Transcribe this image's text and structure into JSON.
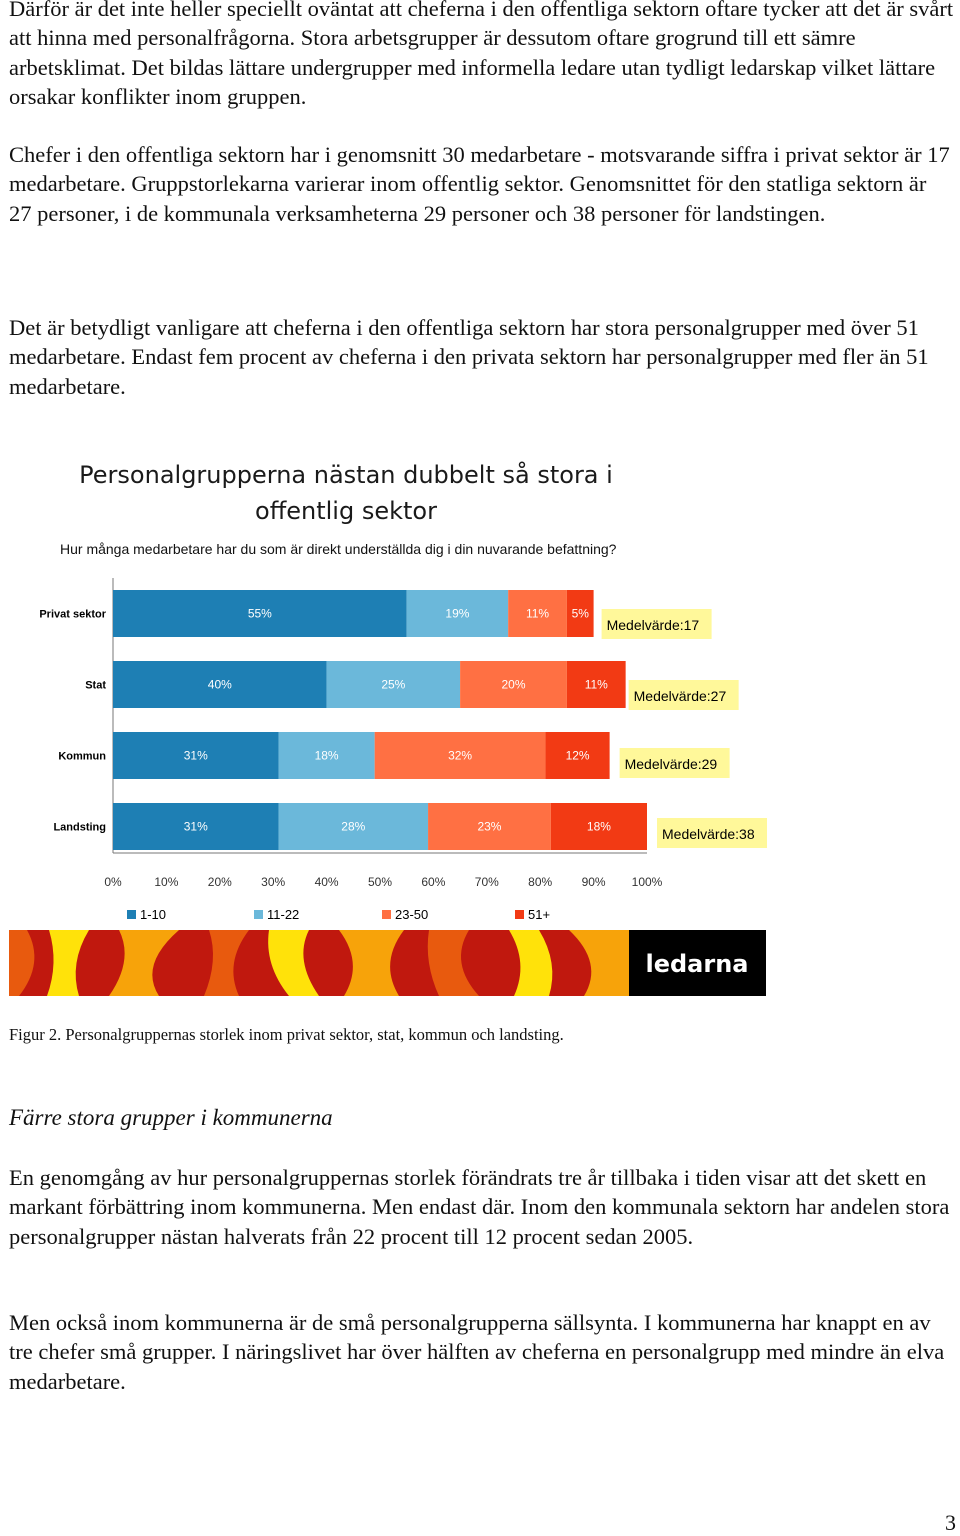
{
  "paragraphs": {
    "p1": "Därför är det inte heller speciellt oväntat att cheferna i den offentliga sektorn oftare tycker att det är svårt att hinna med personalfrågorna. Stora arbetsgrupper är dessutom oftare grogrund till ett sämre arbetsklimat. Det bildas lättare undergrupper med informella ledare utan tydligt ledarskap vilket lättare orsakar konflikter inom gruppen.",
    "p2": "Chefer i den offentliga sektorn har i genomsnitt 30 medarbetare - motsvarande siffra i privat sektor är 17 medarbetare. Gruppstorlekarna varierar inom offentlig sektor. Genomsnittet för den statliga sektorn är 27 personer, i de kommunala verksamheterna 29 personer och 38 personer för landstingen.",
    "p3": "Det är betydligt vanligare att cheferna i den offentliga sektorn har stora personalgrupper med över 51 medarbetare. Endast fem procent av cheferna i den privata sektorn har personalgrupper med fler än 51 medarbetare.",
    "p4": "En genomgång av hur personalgruppernas storlek förändrats tre år tillbaka i tiden visar att det skett en markant förbättring inom kommunerna. Men endast där. Inom den kommunala sektorn har andelen stora personalgrupper nästan halverats från 22 procent till 12 procent sedan 2005.",
    "p5": "Men också inom kommunerna är de små personalgrupperna sällsynta. I kommunerna har knappt en av tre chefer små grupper. I näringslivet har över hälften av cheferna en personalgrupp med mindre än elva medarbetare."
  },
  "subheading": "Färre stora grupper i kommunerna",
  "caption": "Figur 2. Personalgruppernas storlek inom privat sektor, stat, kommun och landsting.",
  "page_number": "3",
  "logo_text": "ledarna",
  "colors": {
    "s1": "#1E7FB4",
    "s2": "#6BB8DA",
    "s3": "#FF7043",
    "s4": "#F23A14",
    "mean_box": "#FFF89A",
    "logo_bg": "#000000",
    "band": [
      "#C0180E",
      "#E85A0E",
      "#F7A30A",
      "#FFE20A",
      "#D83A0C"
    ]
  },
  "chart_data": {
    "type": "bar",
    "orientation": "horizontal",
    "stacked": true,
    "title": "Personalgrupperna nästan dubbelt så stora i offentlig sektor",
    "subtitle": "Hur många medarbetare har du som är direkt underställda dig i din nuvarande befattning?",
    "categories": [
      "Privat sektor",
      "Stat",
      "Kommun",
      "Landsting"
    ],
    "series": [
      {
        "name": "1-10",
        "values": [
          55,
          40,
          31,
          31
        ]
      },
      {
        "name": "11-22",
        "values": [
          19,
          25,
          18,
          28
        ]
      },
      {
        "name": "23-50",
        "values": [
          11,
          20,
          32,
          23
        ]
      },
      {
        "name": "51+",
        "values": [
          5,
          11,
          12,
          18
        ]
      }
    ],
    "annotations": [
      "Medelvärde:17",
      "Medelvärde:27",
      "Medelvärde:29",
      "Medelvärde:38"
    ],
    "xticks": [
      "0%",
      "10%",
      "20%",
      "30%",
      "40%",
      "50%",
      "60%",
      "70%",
      "80%",
      "90%",
      "100%"
    ],
    "xlim": [
      0,
      100
    ],
    "grid": false,
    "legend_position": "bottom"
  }
}
